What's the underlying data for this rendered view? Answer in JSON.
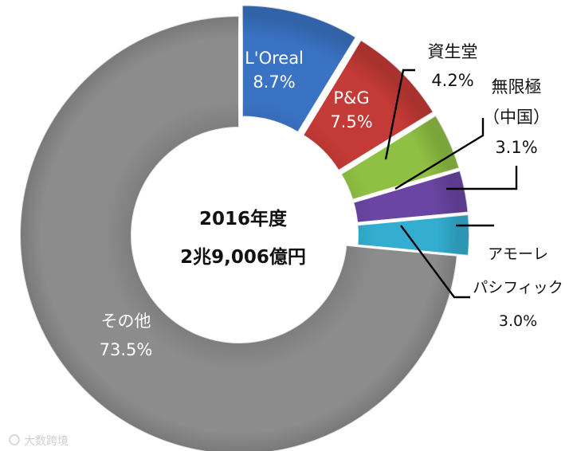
{
  "chart_data": {
    "type": "donut",
    "title": "2016年度",
    "subtitle": "2兆9,006億円",
    "slices": [
      {
        "name_lines": [
          "L'Oreal"
        ],
        "label": "8.7%",
        "value": 8.7,
        "color": "#3a73c4"
      },
      {
        "name_lines": [
          "P&G"
        ],
        "label": "7.5%",
        "value": 7.5,
        "color": "#c43a36"
      },
      {
        "name_lines": [
          "資生堂"
        ],
        "label": "4.2%",
        "value": 4.2,
        "color": "#8fc043"
      },
      {
        "name_lines": [
          "無限極",
          "（中国）"
        ],
        "label": "3.1%",
        "value": 3.1,
        "color": "#6a45a3"
      },
      {
        "name_lines": [
          "アモーレ",
          "パシフィック"
        ],
        "label": "3.0%",
        "value": 3.0,
        "color": "#33aed1"
      },
      {
        "name_lines": [
          "その他"
        ],
        "label": "73.5%",
        "value": 73.5,
        "color": "#8c8c8c"
      }
    ]
  },
  "watermark": "大数跨境"
}
